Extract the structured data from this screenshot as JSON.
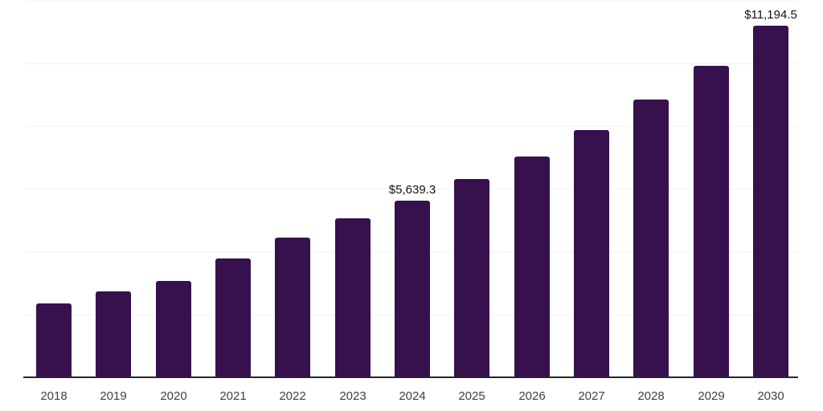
{
  "chart_data": {
    "type": "bar",
    "categories": [
      "2018",
      "2019",
      "2020",
      "2021",
      "2022",
      "2023",
      "2024",
      "2025",
      "2026",
      "2027",
      "2028",
      "2029",
      "2030"
    ],
    "values": [
      2360,
      2745,
      3060,
      3785,
      4455,
      5075,
      5639.3,
      6310,
      7030,
      7885,
      8865,
      9935,
      11194.5
    ],
    "value_labels": [
      "",
      "",
      "",
      "",
      "",
      "",
      "$5,639.3",
      "",
      "",
      "",
      "",
      "",
      "$11,194.5"
    ],
    "title": "",
    "xlabel": "",
    "ylabel": "",
    "ylim": [
      0,
      12000
    ],
    "gridline_step": 2000,
    "grid": "horizontal-only",
    "y_axis_labels_shown": false,
    "legend": "none",
    "colors": {
      "bar": "#36114D",
      "grid_line": "#F2F2F2",
      "axis_line": "#262626",
      "tick_label": "#404040",
      "value_label": "#111111",
      "background": "#FFFFFF"
    }
  }
}
